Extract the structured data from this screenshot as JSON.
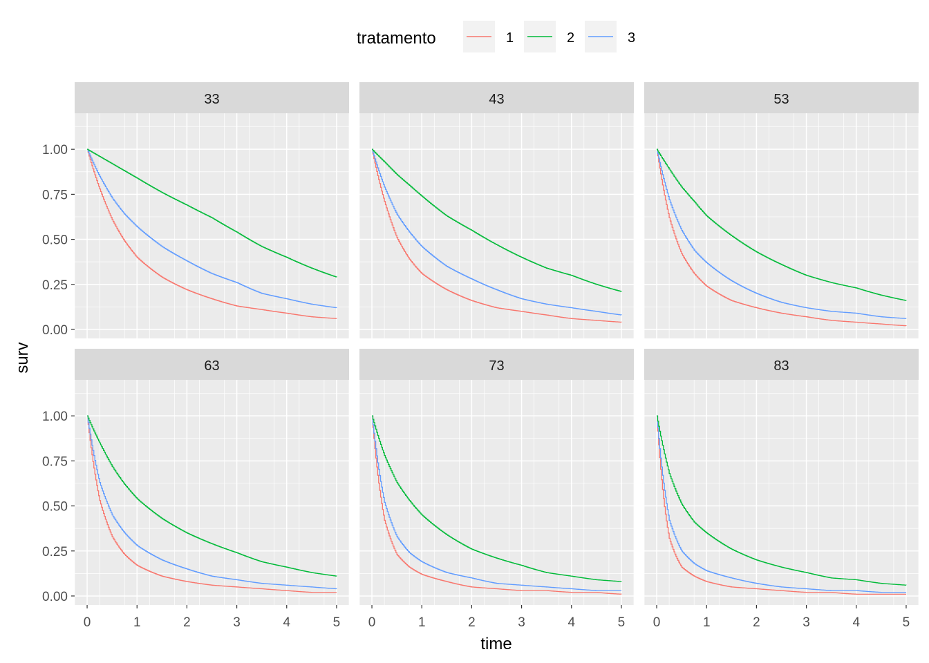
{
  "chart_data": {
    "type": "line",
    "step": true,
    "xlabel": "time",
    "ylabel": "surv",
    "legend": {
      "title": "tratamento",
      "position": "top",
      "entries": [
        {
          "label": "1",
          "color": "#F8766D"
        },
        {
          "label": "2",
          "color": "#00BA38"
        },
        {
          "label": "3",
          "color": "#619CFF"
        }
      ]
    },
    "xlim": [
      -0.25,
      5.25
    ],
    "ylim": [
      -0.05,
      1.2
    ],
    "x_ticks": [
      0,
      1,
      2,
      3,
      4,
      5
    ],
    "x_tick_labels": [
      "0",
      "1",
      "2",
      "3",
      "4",
      "5"
    ],
    "y_ticks": [
      0,
      0.25,
      0.5,
      0.75,
      1.0
    ],
    "y_tick_labels": [
      "0.00",
      "0.25",
      "0.50",
      "0.75",
      "1.00"
    ],
    "grid": true,
    "x": [
      0,
      0.25,
      0.5,
      0.75,
      1,
      1.5,
      2,
      2.5,
      3,
      3.5,
      4,
      4.5,
      5
    ],
    "panels": [
      {
        "label": "33",
        "series": [
          {
            "name": "1",
            "values": [
              1,
              0.78,
              0.61,
              0.49,
              0.4,
              0.29,
              0.22,
              0.17,
              0.13,
              0.11,
              0.09,
              0.07,
              0.06
            ]
          },
          {
            "name": "2",
            "values": [
              1,
              0.96,
              0.92,
              0.88,
              0.84,
              0.76,
              0.69,
              0.62,
              0.54,
              0.46,
              0.4,
              0.34,
              0.29
            ]
          },
          {
            "name": "3",
            "values": [
              1,
              0.85,
              0.73,
              0.64,
              0.57,
              0.46,
              0.38,
              0.31,
              0.26,
              0.2,
              0.17,
              0.14,
              0.12
            ]
          }
        ]
      },
      {
        "label": "43",
        "series": [
          {
            "name": "1",
            "values": [
              1,
              0.71,
              0.51,
              0.39,
              0.31,
              0.22,
              0.16,
              0.12,
              0.1,
              0.08,
              0.06,
              0.05,
              0.04
            ]
          },
          {
            "name": "2",
            "values": [
              1,
              0.93,
              0.86,
              0.8,
              0.74,
              0.63,
              0.55,
              0.47,
              0.4,
              0.34,
              0.3,
              0.25,
              0.21
            ]
          },
          {
            "name": "3",
            "values": [
              1,
              0.79,
              0.64,
              0.54,
              0.46,
              0.35,
              0.28,
              0.22,
              0.17,
              0.14,
              0.12,
              0.1,
              0.08
            ]
          }
        ]
      },
      {
        "label": "53",
        "series": [
          {
            "name": "1",
            "values": [
              1,
              0.62,
              0.42,
              0.31,
              0.24,
              0.16,
              0.12,
              0.09,
              0.07,
              0.05,
              0.04,
              0.03,
              0.02
            ]
          },
          {
            "name": "2",
            "values": [
              1,
              0.89,
              0.79,
              0.71,
              0.63,
              0.52,
              0.43,
              0.36,
              0.3,
              0.26,
              0.23,
              0.19,
              0.16
            ]
          },
          {
            "name": "3",
            "values": [
              1,
              0.72,
              0.55,
              0.44,
              0.37,
              0.27,
              0.2,
              0.15,
              0.12,
              0.1,
              0.09,
              0.07,
              0.06
            ]
          }
        ]
      },
      {
        "label": "63",
        "series": [
          {
            "name": "1",
            "values": [
              1,
              0.53,
              0.33,
              0.23,
              0.17,
              0.11,
              0.08,
              0.06,
              0.05,
              0.04,
              0.03,
              0.02,
              0.02
            ]
          },
          {
            "name": "2",
            "values": [
              1,
              0.85,
              0.72,
              0.62,
              0.54,
              0.43,
              0.35,
              0.29,
              0.24,
              0.19,
              0.16,
              0.13,
              0.11
            ]
          },
          {
            "name": "3",
            "values": [
              1,
              0.63,
              0.45,
              0.35,
              0.28,
              0.2,
              0.15,
              0.11,
              0.09,
              0.07,
              0.06,
              0.05,
              0.04
            ]
          }
        ]
      },
      {
        "label": "73",
        "series": [
          {
            "name": "1",
            "values": [
              1,
              0.42,
              0.23,
              0.16,
              0.12,
              0.08,
              0.05,
              0.04,
              0.03,
              0.03,
              0.02,
              0.02,
              0.01
            ]
          },
          {
            "name": "2",
            "values": [
              1,
              0.78,
              0.63,
              0.53,
              0.45,
              0.34,
              0.26,
              0.21,
              0.17,
              0.13,
              0.11,
              0.09,
              0.08
            ]
          },
          {
            "name": "3",
            "values": [
              1,
              0.52,
              0.33,
              0.24,
              0.19,
              0.13,
              0.1,
              0.07,
              0.06,
              0.05,
              0.04,
              0.03,
              0.03
            ]
          }
        ]
      },
      {
        "label": "83",
        "series": [
          {
            "name": "1",
            "values": [
              1,
              0.32,
              0.16,
              0.11,
              0.08,
              0.05,
              0.04,
              0.03,
              0.02,
              0.02,
              0.01,
              0.01,
              0.01
            ]
          },
          {
            "name": "2",
            "values": [
              1,
              0.68,
              0.51,
              0.41,
              0.35,
              0.26,
              0.2,
              0.16,
              0.13,
              0.1,
              0.09,
              0.07,
              0.06
            ]
          },
          {
            "name": "3",
            "values": [
              1,
              0.42,
              0.25,
              0.18,
              0.14,
              0.1,
              0.07,
              0.05,
              0.04,
              0.03,
              0.03,
              0.02,
              0.02
            ]
          }
        ]
      }
    ]
  }
}
